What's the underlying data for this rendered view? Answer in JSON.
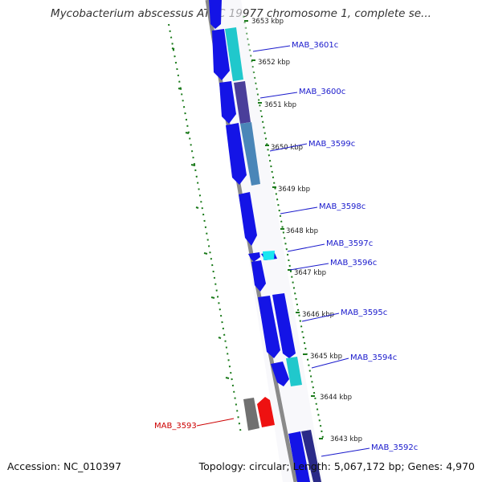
{
  "title": "Mycobacterium abscessus ATCC 19977 chromosome 1, complete se...",
  "footer": {
    "accession": "Accession: NC_010397",
    "summary": "Topology: circular; Length: 5,067,172 bp; Genes: 4,970"
  },
  "kbp_labels": [
    "3653 kbp",
    "3652 kbp",
    "3651 kbp",
    "3650 kbp",
    "3649 kbp",
    "3648 kbp",
    "3647 kbp",
    "3646 kbp",
    "3645 kbp",
    "3644 kbp",
    "3643 kbp"
  ],
  "genes": [
    {
      "name": "MAB_3601c",
      "color": "#1a1acc"
    },
    {
      "name": "MAB_3600c",
      "color": "#1a1acc"
    },
    {
      "name": "MAB_3599c",
      "color": "#1a1acc"
    },
    {
      "name": "MAB_3598c",
      "color": "#1a1acc"
    },
    {
      "name": "MAB_3597c",
      "color": "#1a1acc"
    },
    {
      "name": "MAB_3596c",
      "color": "#1a1acc"
    },
    {
      "name": "MAB_3595c",
      "color": "#1a1acc"
    },
    {
      "name": "MAB_3594c",
      "color": "#1a1acc"
    },
    {
      "name": "MAB_3593",
      "color": "#cc0000"
    },
    {
      "name": "MAB_3592c",
      "color": "#1a1acc"
    }
  ],
  "colors": {
    "backbone": "#8a8a8a",
    "gc_ticks": "#1a7a1a",
    "cds": "#1414e6",
    "cog_cyan": "#20c8cc",
    "cog_purple": "#4a3e9a",
    "cog_steel": "#4a86b8",
    "cog_bright_cyan": "#19e6f0",
    "rna_red": "#ee1111",
    "gray_feature": "#707070"
  }
}
